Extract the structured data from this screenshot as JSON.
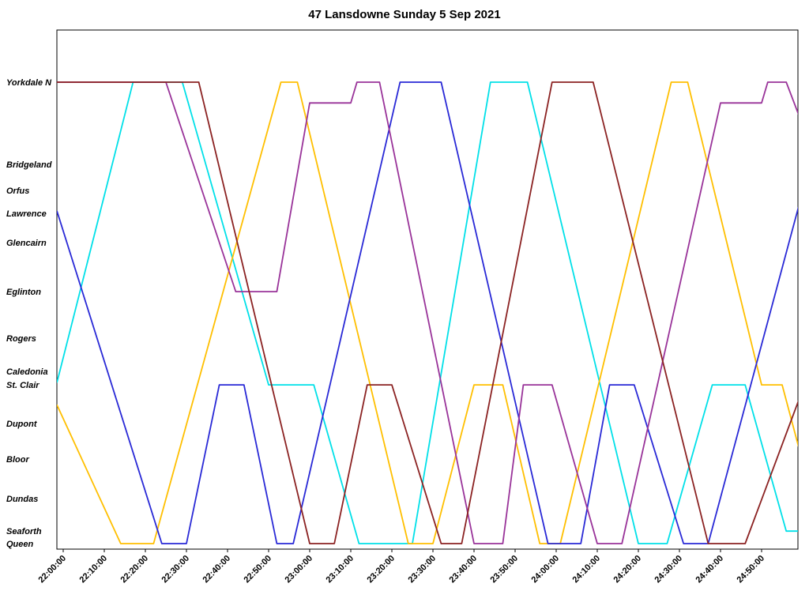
{
  "title": "47 Lansdowne Sunday 5 Sep 2021",
  "chart_data": {
    "type": "line",
    "title": "47 Lansdowne Sunday 5 Sep 2021",
    "xlabel": "",
    "ylabel": "",
    "grid": false,
    "legend_position": "none",
    "x_axis": {
      "unit": "time (hh:mm:ss)",
      "tick_interval_minutes": 10,
      "ticks": [
        "22:00:00",
        "22:10:00",
        "22:20:00",
        "22:30:00",
        "22:40:00",
        "22:50:00",
        "23:00:00",
        "23:10:00",
        "23:20:00",
        "23:30:00",
        "23:40:00",
        "23:50:00",
        "24:00:00",
        "24:10:00",
        "24:20:00",
        "24:30:00",
        "24:40:00",
        "24:50:00"
      ],
      "range_minutes_from_2200": [
        -1.5,
        179
      ]
    },
    "y_axis": {
      "unit": "route location (relative distance, Queen=0 to Yorkdale N=100)",
      "range": [
        0,
        100
      ],
      "stops": [
        {
          "label": "Yorkdale N",
          "position": 100
        },
        {
          "label": "Bridgeland",
          "position": 82.2
        },
        {
          "label": "Orfus",
          "position": 76.5
        },
        {
          "label": "Lawrence",
          "position": 71.6
        },
        {
          "label": "Glencairn",
          "position": 65.2
        },
        {
          "label": "Eglinton",
          "position": 54.6
        },
        {
          "label": "Rogers",
          "position": 44.5
        },
        {
          "label": "Caledonia",
          "position": 37.3
        },
        {
          "label": "St. Clair",
          "position": 34.4
        },
        {
          "label": "Dupont",
          "position": 26
        },
        {
          "label": "Bloor",
          "position": 18.3
        },
        {
          "label": "Dundas",
          "position": 9.8
        },
        {
          "label": "Seaforth",
          "position": 2.7
        },
        {
          "label": "Queen",
          "position": 0
        }
      ]
    },
    "series": [
      {
        "name": "cyan-run",
        "color": "#00E0E8",
        "points": [
          [
            -1.5,
            35
          ],
          [
            17,
            100
          ],
          [
            29,
            100
          ],
          [
            50,
            34.4
          ],
          [
            61,
            34.4
          ],
          [
            72,
            0
          ],
          [
            85,
            0
          ],
          [
            104,
            100
          ],
          [
            113,
            100
          ],
          [
            140,
            0
          ],
          [
            147,
            0
          ],
          [
            158,
            34.4
          ],
          [
            166,
            34.4
          ],
          [
            176,
            2.7
          ],
          [
            179,
            2.7
          ]
        ]
      },
      {
        "name": "gold-run",
        "color": "#FFBF00",
        "points": [
          [
            -1.5,
            30
          ],
          [
            14,
            0
          ],
          [
            22,
            0
          ],
          [
            53,
            100
          ],
          [
            57,
            100
          ],
          [
            84,
            0
          ],
          [
            90,
            0
          ],
          [
            100,
            34.4
          ],
          [
            107,
            34.4
          ],
          [
            116,
            0
          ],
          [
            121,
            0
          ],
          [
            148,
            100
          ],
          [
            152,
            100
          ],
          [
            170,
            34.4
          ],
          [
            175,
            34.4
          ],
          [
            179,
            21
          ]
        ]
      },
      {
        "name": "blue-run",
        "color": "#2929D6",
        "points": [
          [
            -1.5,
            72
          ],
          [
            24,
            0
          ],
          [
            30,
            0
          ],
          [
            38,
            34.4
          ],
          [
            44,
            34.4
          ],
          [
            52,
            0
          ],
          [
            56,
            0
          ],
          [
            82,
            100
          ],
          [
            92,
            100
          ],
          [
            118,
            0
          ],
          [
            126,
            0
          ],
          [
            133,
            34.4
          ],
          [
            139,
            34.4
          ],
          [
            151,
            0
          ],
          [
            157,
            0
          ],
          [
            179,
            73
          ]
        ]
      },
      {
        "name": "purple-run",
        "color": "#993399",
        "points": [
          [
            -1.5,
            100
          ],
          [
            25,
            100
          ],
          [
            42,
            54.6
          ],
          [
            52,
            54.6
          ],
          [
            60,
            95.5
          ],
          [
            70,
            95.5
          ],
          [
            71.5,
            100
          ],
          [
            77,
            100
          ],
          [
            100,
            0
          ],
          [
            107,
            0
          ],
          [
            112,
            34.4
          ],
          [
            119,
            34.4
          ],
          [
            130,
            0
          ],
          [
            136,
            0
          ],
          [
            160,
            95.5
          ],
          [
            170,
            95.5
          ],
          [
            171.5,
            100
          ],
          [
            176,
            100
          ],
          [
            179,
            93
          ]
        ]
      },
      {
        "name": "dark-red-run",
        "color": "#8B2222",
        "points": [
          [
            -1.5,
            100
          ],
          [
            33,
            100
          ],
          [
            60,
            0
          ],
          [
            66,
            0
          ],
          [
            74,
            34.4
          ],
          [
            80,
            34.4
          ],
          [
            92,
            0
          ],
          [
            97,
            0
          ],
          [
            119,
            100
          ],
          [
            129,
            100
          ],
          [
            157,
            0
          ],
          [
            166,
            0
          ],
          [
            179,
            31
          ]
        ]
      }
    ]
  }
}
